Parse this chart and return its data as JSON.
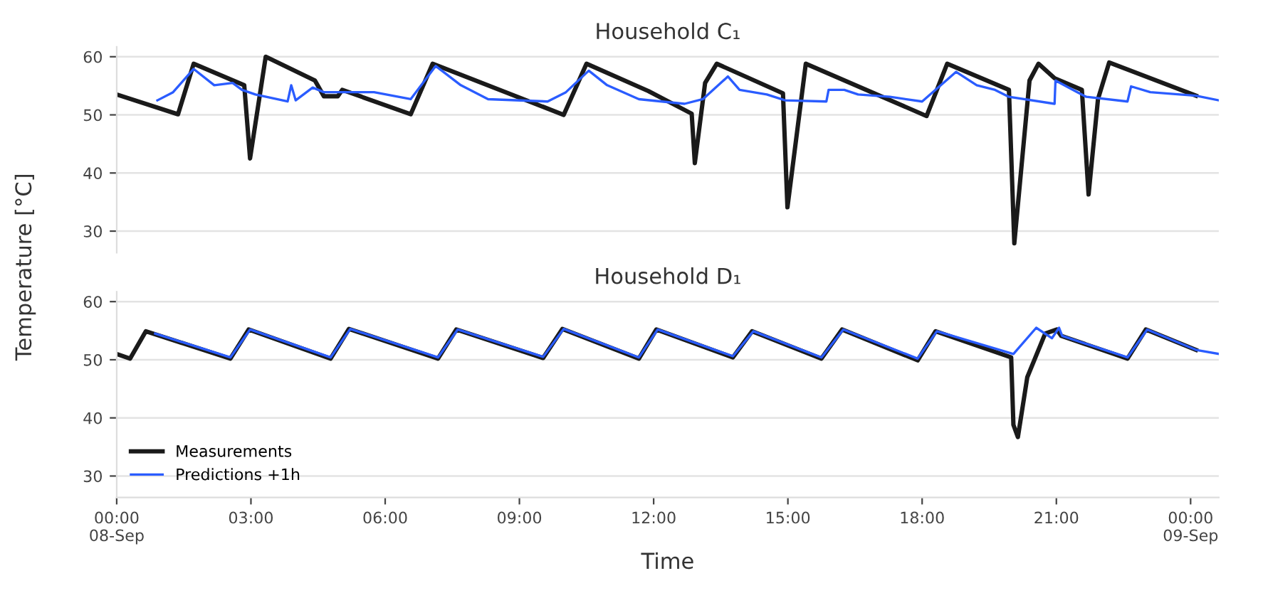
{
  "chart_data": [
    {
      "type": "line",
      "title": "Household C₁",
      "ylabel": "Temperature [°C]",
      "xlim": [
        0,
        24.63
      ],
      "ylim": [
        26.3,
        61.7
      ],
      "yticks": [
        30,
        40,
        50,
        60
      ],
      "tick_labels": "y",
      "grid": "y",
      "line_style": "solid",
      "series": [
        {
          "color": "#1a1a1a",
          "x": [
            0,
            1.37,
            1.72,
            2.85,
            2.98,
            3.33,
            4.43,
            4.63,
            4.94,
            5.04,
            6.57,
            7.06,
            9.99,
            10.5,
            11.88,
            12.85,
            12.92,
            13.15,
            13.41,
            14.89,
            14.99,
            15.4,
            18.1,
            18.56,
            19.94,
            20.06,
            20.4,
            20.6,
            20.96,
            21.57,
            21.72,
            21.93,
            22.18,
            24.12
          ],
          "values": [
            53.5,
            50.1,
            58.8,
            55.1,
            42.5,
            60,
            55.9,
            53.2,
            53.2,
            54.3,
            50.1,
            58.8,
            50,
            58.8,
            54.1,
            50.2,
            41.7,
            55.5,
            58.8,
            53.7,
            34.1,
            58.8,
            49.8,
            58.8,
            54.3,
            27.9,
            55.9,
            58.8,
            56.3,
            54.3,
            36.3,
            52.7,
            59,
            53.3
          ]
        },
        {
          "color": "#2a5cff",
          "x": [
            0.91,
            1.26,
            1.72,
            2.18,
            2.59,
            2.8,
            3.1,
            3.82,
            3.9,
            4.0,
            4.38,
            4.63,
            5.75,
            6.57,
            7.13,
            7.69,
            8.3,
            9.63,
            10.04,
            10.55,
            10.96,
            11.67,
            12.69,
            13.1,
            13.66,
            13.92,
            14.53,
            14.94,
            15.86,
            15.91,
            16.26,
            16.57,
            17.28,
            18.0,
            18.76,
            19.22,
            19.63,
            19.94,
            20.96,
            20.98,
            21.47,
            21.67,
            22.59,
            22.67,
            23.1,
            24.12,
            24.63
          ],
          "values": [
            52.5,
            53.9,
            57.9,
            55.1,
            55.5,
            54.3,
            53.5,
            52.3,
            55.1,
            52.5,
            54.7,
            53.9,
            53.9,
            52.7,
            58.4,
            55.1,
            52.7,
            52.3,
            53.9,
            57.6,
            55.1,
            52.7,
            51.9,
            52.7,
            56.6,
            54.3,
            53.5,
            52.5,
            52.3,
            54.3,
            54.3,
            53.5,
            53.1,
            52.3,
            57.4,
            55.1,
            54.3,
            53.1,
            51.9,
            55.9,
            53.9,
            53.1,
            52.3,
            54.9,
            53.9,
            53.3,
            52.5
          ]
        }
      ]
    },
    {
      "type": "line",
      "title": "Household D₁",
      "xlabel": "Time",
      "xlim": [
        0,
        24.63
      ],
      "ylim": [
        26.3,
        61.7
      ],
      "yticks": [
        30,
        40,
        50,
        60
      ],
      "xticks": [
        {
          "value": 0,
          "label": "00:00\n08-Sep"
        },
        {
          "value": 3,
          "label": "03:00"
        },
        {
          "value": 6,
          "label": "06:00"
        },
        {
          "value": 9,
          "label": "09:00"
        },
        {
          "value": 12,
          "label": "12:00"
        },
        {
          "value": 15,
          "label": "15:00"
        },
        {
          "value": 18,
          "label": "18:00"
        },
        {
          "value": 21,
          "label": "21:00"
        },
        {
          "value": 24,
          "label": "00:00\n09-Sep"
        }
      ],
      "grid": "y",
      "legend": "bottom left",
      "line_style": "solid",
      "series": [
        {
          "name": "Measurements",
          "color": "#1a1a1a",
          "x": [
            0,
            0.3,
            0.65,
            2.54,
            2.95,
            4.78,
            5.19,
            7.18,
            7.59,
            9.53,
            9.96,
            11.67,
            12.06,
            13.77,
            14.2,
            15.75,
            16.21,
            17.9,
            18.3,
            19.99,
            20.04,
            20.14,
            20.35,
            20.75,
            21.01,
            21.11,
            22.59,
            23.0,
            24.12
          ],
          "values": [
            51,
            50.2,
            54.9,
            50.2,
            55.2,
            50.2,
            55.3,
            50.2,
            55.2,
            50.3,
            55.3,
            50.2,
            55.2,
            50.4,
            54.9,
            50.2,
            55.2,
            49.9,
            54.9,
            50.4,
            38.8,
            36.7,
            47.0,
            54.5,
            55.2,
            54.1,
            50.2,
            55.2,
            51.7
          ]
        },
        {
          "name": "Predictions +1h",
          "color": "#2a5cff",
          "x": [
            0.86,
            2.54,
            2.98,
            4.78,
            5.22,
            7.18,
            7.62,
            9.53,
            9.99,
            11.67,
            12.09,
            13.77,
            14.23,
            15.75,
            16.24,
            17.9,
            18.33,
            20.04,
            20.55,
            20.9,
            21.06,
            21.13,
            22.59,
            23.03,
            24.12,
            24.63
          ],
          "values": [
            54.5,
            50.4,
            55.2,
            50.4,
            55.3,
            50.4,
            55.2,
            50.5,
            55.3,
            50.4,
            55.2,
            50.6,
            54.9,
            50.4,
            55.2,
            50.2,
            54.9,
            51,
            55.5,
            53.7,
            55.5,
            54.1,
            50.4,
            55.2,
            51.7,
            51
          ]
        }
      ]
    }
  ]
}
